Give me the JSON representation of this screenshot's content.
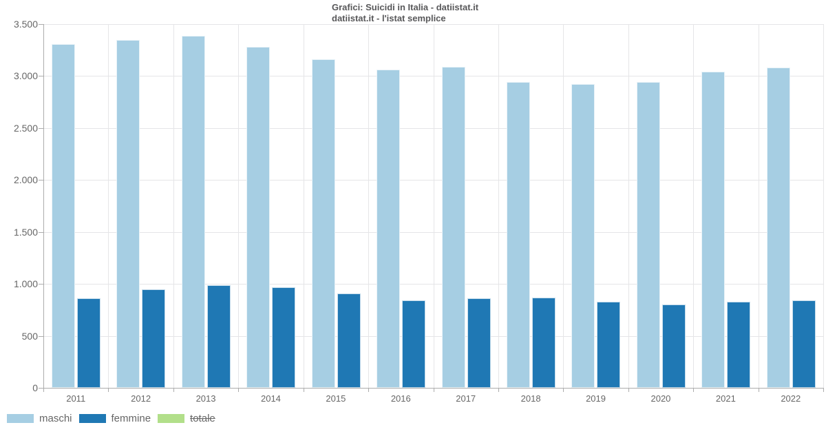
{
  "title": {
    "line1": "Grafici: Suicidi in Italia - datiistat.it",
    "line2": "datiistat.it - l'istat semplice"
  },
  "chart_data": {
    "type": "bar",
    "title": "Grafici: Suicidi in Italia - datiistat.it",
    "subtitle": "datiistat.it - l'istat semplice",
    "categories": [
      "2011",
      "2012",
      "2013",
      "2014",
      "2015",
      "2016",
      "2017",
      "2018",
      "2019",
      "2020",
      "2021",
      "2022"
    ],
    "series": [
      {
        "name": "maschi",
        "color": "#A6CEE3",
        "disabled": false,
        "values": [
          3310,
          3350,
          3390,
          3280,
          3160,
          3060,
          3090,
          2940,
          2925,
          2940,
          3040,
          3085
        ]
      },
      {
        "name": "femmine",
        "color": "#1F78B4",
        "disabled": false,
        "values": [
          865,
          945,
          985,
          965,
          905,
          840,
          865,
          870,
          830,
          800,
          830,
          845
        ]
      },
      {
        "name": "totale",
        "color": "#B2DF8A",
        "disabled": true,
        "values": []
      }
    ],
    "xlabel": "",
    "ylabel": "",
    "ylim": [
      0,
      3500
    ],
    "ytick_interval": 500,
    "ytick_labels": [
      "0",
      "500",
      "1.000",
      "1.500",
      "2.000",
      "2.500",
      "3.000",
      "3.500"
    ],
    "grid": true,
    "legend_position": "bottom-left"
  },
  "colors": {
    "grid": "#E5E5E7",
    "axis": "#ABABAB",
    "label": "#666666",
    "title": "#58585A"
  }
}
